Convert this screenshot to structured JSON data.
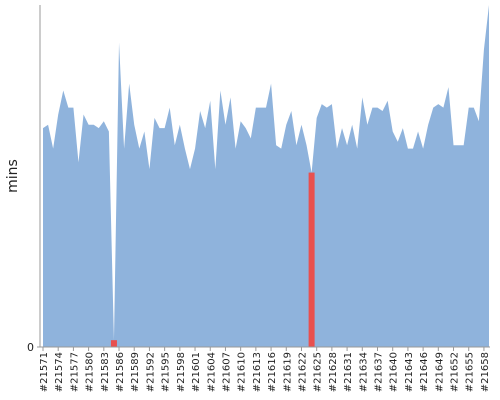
{
  "chart_data": {
    "type": "area",
    "y_label": "mins",
    "categories": [
      "#21571",
      null,
      null,
      "#21574",
      null,
      null,
      "#21577",
      null,
      null,
      "#21580",
      null,
      null,
      "#21583",
      null,
      null,
      "#21586",
      null,
      null,
      "#21589",
      null,
      null,
      "#21592",
      null,
      null,
      "#21595",
      null,
      null,
      "#21598",
      null,
      null,
      "#21601",
      null,
      null,
      "#21604",
      null,
      null,
      "#21607",
      null,
      null,
      "#21610",
      null,
      null,
      "#21613",
      null,
      null,
      "#21616",
      null,
      null,
      "#21619",
      null,
      null,
      "#21622",
      null,
      null,
      "#21625",
      null,
      null,
      "#21628",
      null,
      null,
      "#21631",
      null,
      null,
      "#21634",
      null,
      null,
      "#21637",
      null,
      null,
      "#21640",
      null,
      null,
      "#21643",
      null,
      null,
      "#21646",
      null,
      null,
      "#21649",
      null,
      null,
      "#21652",
      null,
      null,
      "#21655",
      null,
      null,
      "#21658",
      null
    ],
    "values": [
      64,
      65,
      58,
      68,
      75,
      70,
      70,
      54,
      68,
      65,
      65,
      64,
      66,
      63,
      2,
      89,
      58,
      77,
      65,
      58,
      63,
      52,
      67,
      64,
      64,
      70,
      59,
      65,
      58,
      52,
      58,
      69,
      64,
      72,
      52,
      75,
      65,
      73,
      58,
      66,
      64,
      61,
      70,
      70,
      70,
      77,
      59,
      58,
      65,
      69,
      59,
      65,
      59,
      51,
      67,
      71,
      70,
      71,
      58,
      64,
      59,
      65,
      58,
      73,
      65,
      70,
      70,
      69,
      72,
      63,
      60,
      64,
      58,
      58,
      63,
      58,
      65,
      70,
      71,
      70,
      76,
      59,
      59,
      59,
      70,
      70,
      66,
      87,
      100
    ],
    "color": "#8fb3dc",
    "highlights": [
      14,
      53
    ],
    "highlight_color": "#e8504f",
    "ylim": [
      0,
      100
    ],
    "yticks": [
      0
    ]
  }
}
